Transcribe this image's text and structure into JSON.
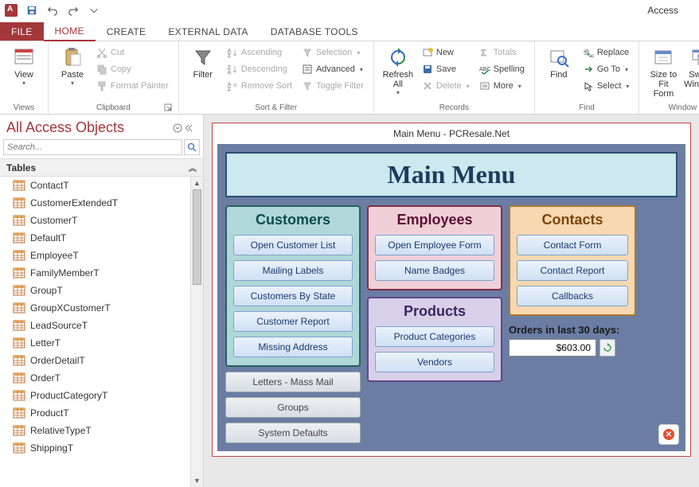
{
  "app": {
    "title": "Access"
  },
  "tabs": {
    "file": "FILE",
    "items": [
      "HOME",
      "CREATE",
      "EXTERNAL DATA",
      "DATABASE TOOLS"
    ],
    "active": 0
  },
  "ribbon": {
    "views": {
      "label": "Views",
      "view": "View"
    },
    "clipboard": {
      "label": "Clipboard",
      "paste": "Paste",
      "cut": "Cut",
      "copy": "Copy",
      "format_painter": "Format Painter"
    },
    "sort_filter": {
      "label": "Sort & Filter",
      "filter": "Filter",
      "ascending": "Ascending",
      "descending": "Descending",
      "remove_sort": "Remove Sort",
      "selection": "Selection",
      "advanced": "Advanced",
      "toggle_filter": "Toggle Filter"
    },
    "records": {
      "label": "Records",
      "refresh": "Refresh\nAll",
      "new": "New",
      "save": "Save",
      "delete": "Delete",
      "totals": "Totals",
      "spelling": "Spelling",
      "more": "More"
    },
    "find": {
      "label": "Find",
      "find": "Find",
      "replace": "Replace",
      "goto": "Go To",
      "select": "Select"
    },
    "window": {
      "label": "Window",
      "size": "Size to\nFit Form",
      "switch": "Switch\nWindows"
    }
  },
  "nav": {
    "title": "All Access Objects",
    "search_placeholder": "Search...",
    "category": "Tables",
    "tables": [
      "ContactT",
      "CustomerExtendedT",
      "CustomerT",
      "DefaultT",
      "EmployeeT",
      "FamilyMemberT",
      "GroupT",
      "GroupXCustomerT",
      "LeadSourceT",
      "LetterT",
      "OrderDetailT",
      "OrderT",
      "ProductCategoryT",
      "ProductT",
      "RelativeTypeT",
      "ShippingT"
    ]
  },
  "form": {
    "window_title": "Main Menu - PCResale.Net",
    "banner": "Main Menu",
    "customers": {
      "title": "Customers",
      "buttons": [
        "Open Customer List",
        "Mailing Labels",
        "Customers By State",
        "Customer Report",
        "Missing Address"
      ]
    },
    "employees": {
      "title": "Employees",
      "buttons": [
        "Open Employee Form",
        "Name Badges"
      ]
    },
    "products": {
      "title": "Products",
      "buttons": [
        "Product Categories",
        "Vendors"
      ]
    },
    "contacts": {
      "title": "Contacts",
      "buttons": [
        "Contact Form",
        "Contact Report",
        "Callbacks"
      ]
    },
    "extras": [
      "Letters - Mass Mail",
      "Groups",
      "System Defaults"
    ],
    "orders": {
      "label": "Orders in last 30 days:",
      "value": "$603.00"
    }
  },
  "colors": {
    "accent": "#a4373a",
    "form_bg": "#6b7da3",
    "banner_bg": "#cde8ee",
    "customers_bg": "#b0d8d8",
    "employees_bg": "#f0d0d8",
    "products_bg": "#d8d0e8",
    "contacts_bg": "#f8d8b0"
  }
}
